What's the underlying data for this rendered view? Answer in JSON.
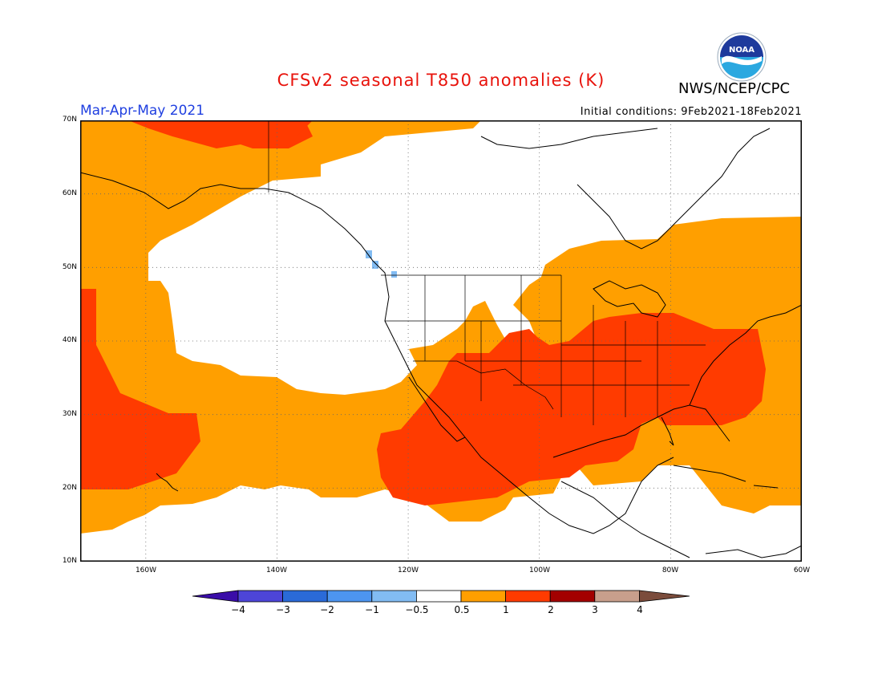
{
  "title": "CFSv2 seasonal T850 anomalies (K)",
  "organization": "NWS/NCEP/CPC",
  "logo_text": "NOAA",
  "period": "Mar-Apr-May 2021",
  "initial_conditions": "Initial conditions: 9Feb2021-18Feb2021",
  "colors": {
    "title": "#e8130c",
    "period": "#1f3fe0",
    "c_m4": "#3a0da8",
    "c_m3": "#4d45d8",
    "c_m2": "#2a6ad8",
    "c_m1": "#4d95f0",
    "c_m05": "#82bcf3",
    "c_0": "#ffffff",
    "c_05": "#ff9f00",
    "c_1": "#ff3b00",
    "c_2": "#a30000",
    "c_3": "#c89f8c",
    "c_4": "#7b4c3c"
  },
  "lat_labels": [
    "70N",
    "60N",
    "50N",
    "40N",
    "30N",
    "20N",
    "10N"
  ],
  "lon_labels": [
    "160W",
    "140W",
    "120W",
    "100W",
    "80W",
    "60W"
  ],
  "colorbar_labels": [
    "−4",
    "−3",
    "−2",
    "−1",
    "−0.5",
    "0.5",
    "1",
    "2",
    "3",
    "4"
  ],
  "map_extent": {
    "lon_min": -170,
    "lon_max": -60,
    "lat_min": 10,
    "lat_max": 70
  }
}
